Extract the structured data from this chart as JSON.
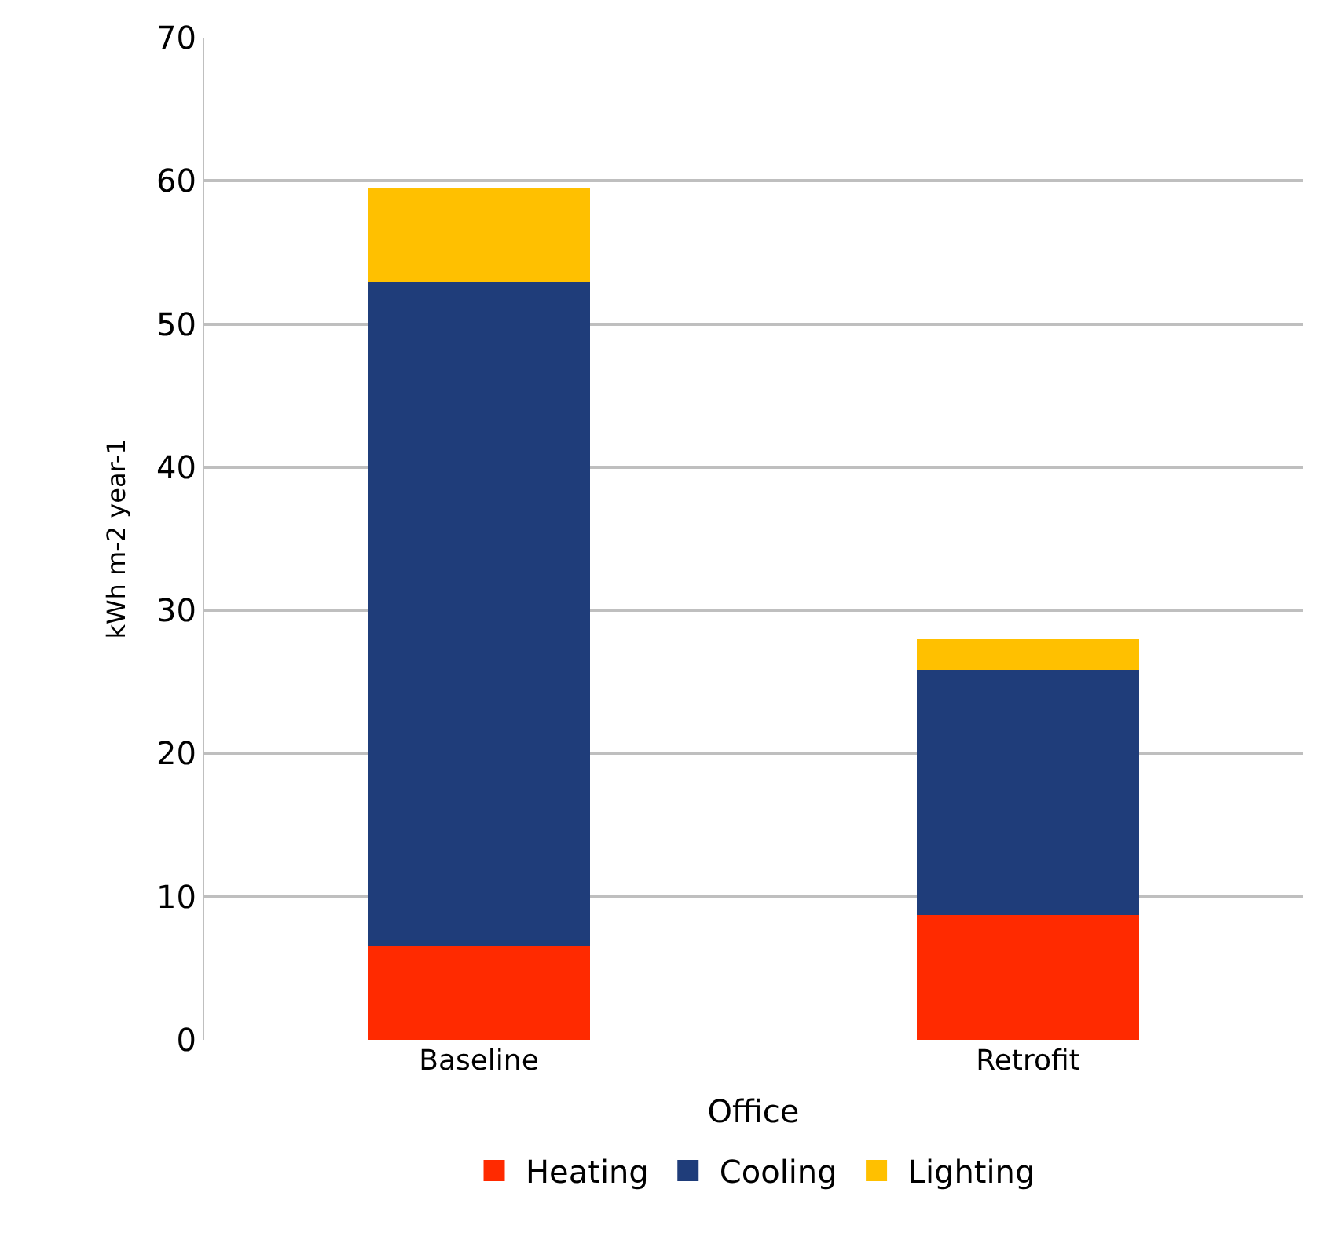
{
  "chart_data": {
    "type": "bar",
    "stacked": true,
    "xlabel": "Office",
    "ylabel": "kWh m-2 year-1",
    "categories": [
      "Baseline",
      "Retrofit"
    ],
    "series": [
      {
        "name": "Heating",
        "color": "#ff2a00",
        "values": [
          6.6,
          8.8
        ]
      },
      {
        "name": "Cooling",
        "color": "#1f3d7a",
        "values": [
          46.4,
          17.1
        ]
      },
      {
        "name": "Lighting",
        "color": "#ffc000",
        "values": [
          6.4,
          2.0
        ]
      }
    ],
    "ylim": [
      0,
      70
    ],
    "yticks": [
      0,
      10,
      20,
      30,
      40,
      50,
      60,
      70
    ],
    "grid": "y",
    "legend": "bottom"
  }
}
